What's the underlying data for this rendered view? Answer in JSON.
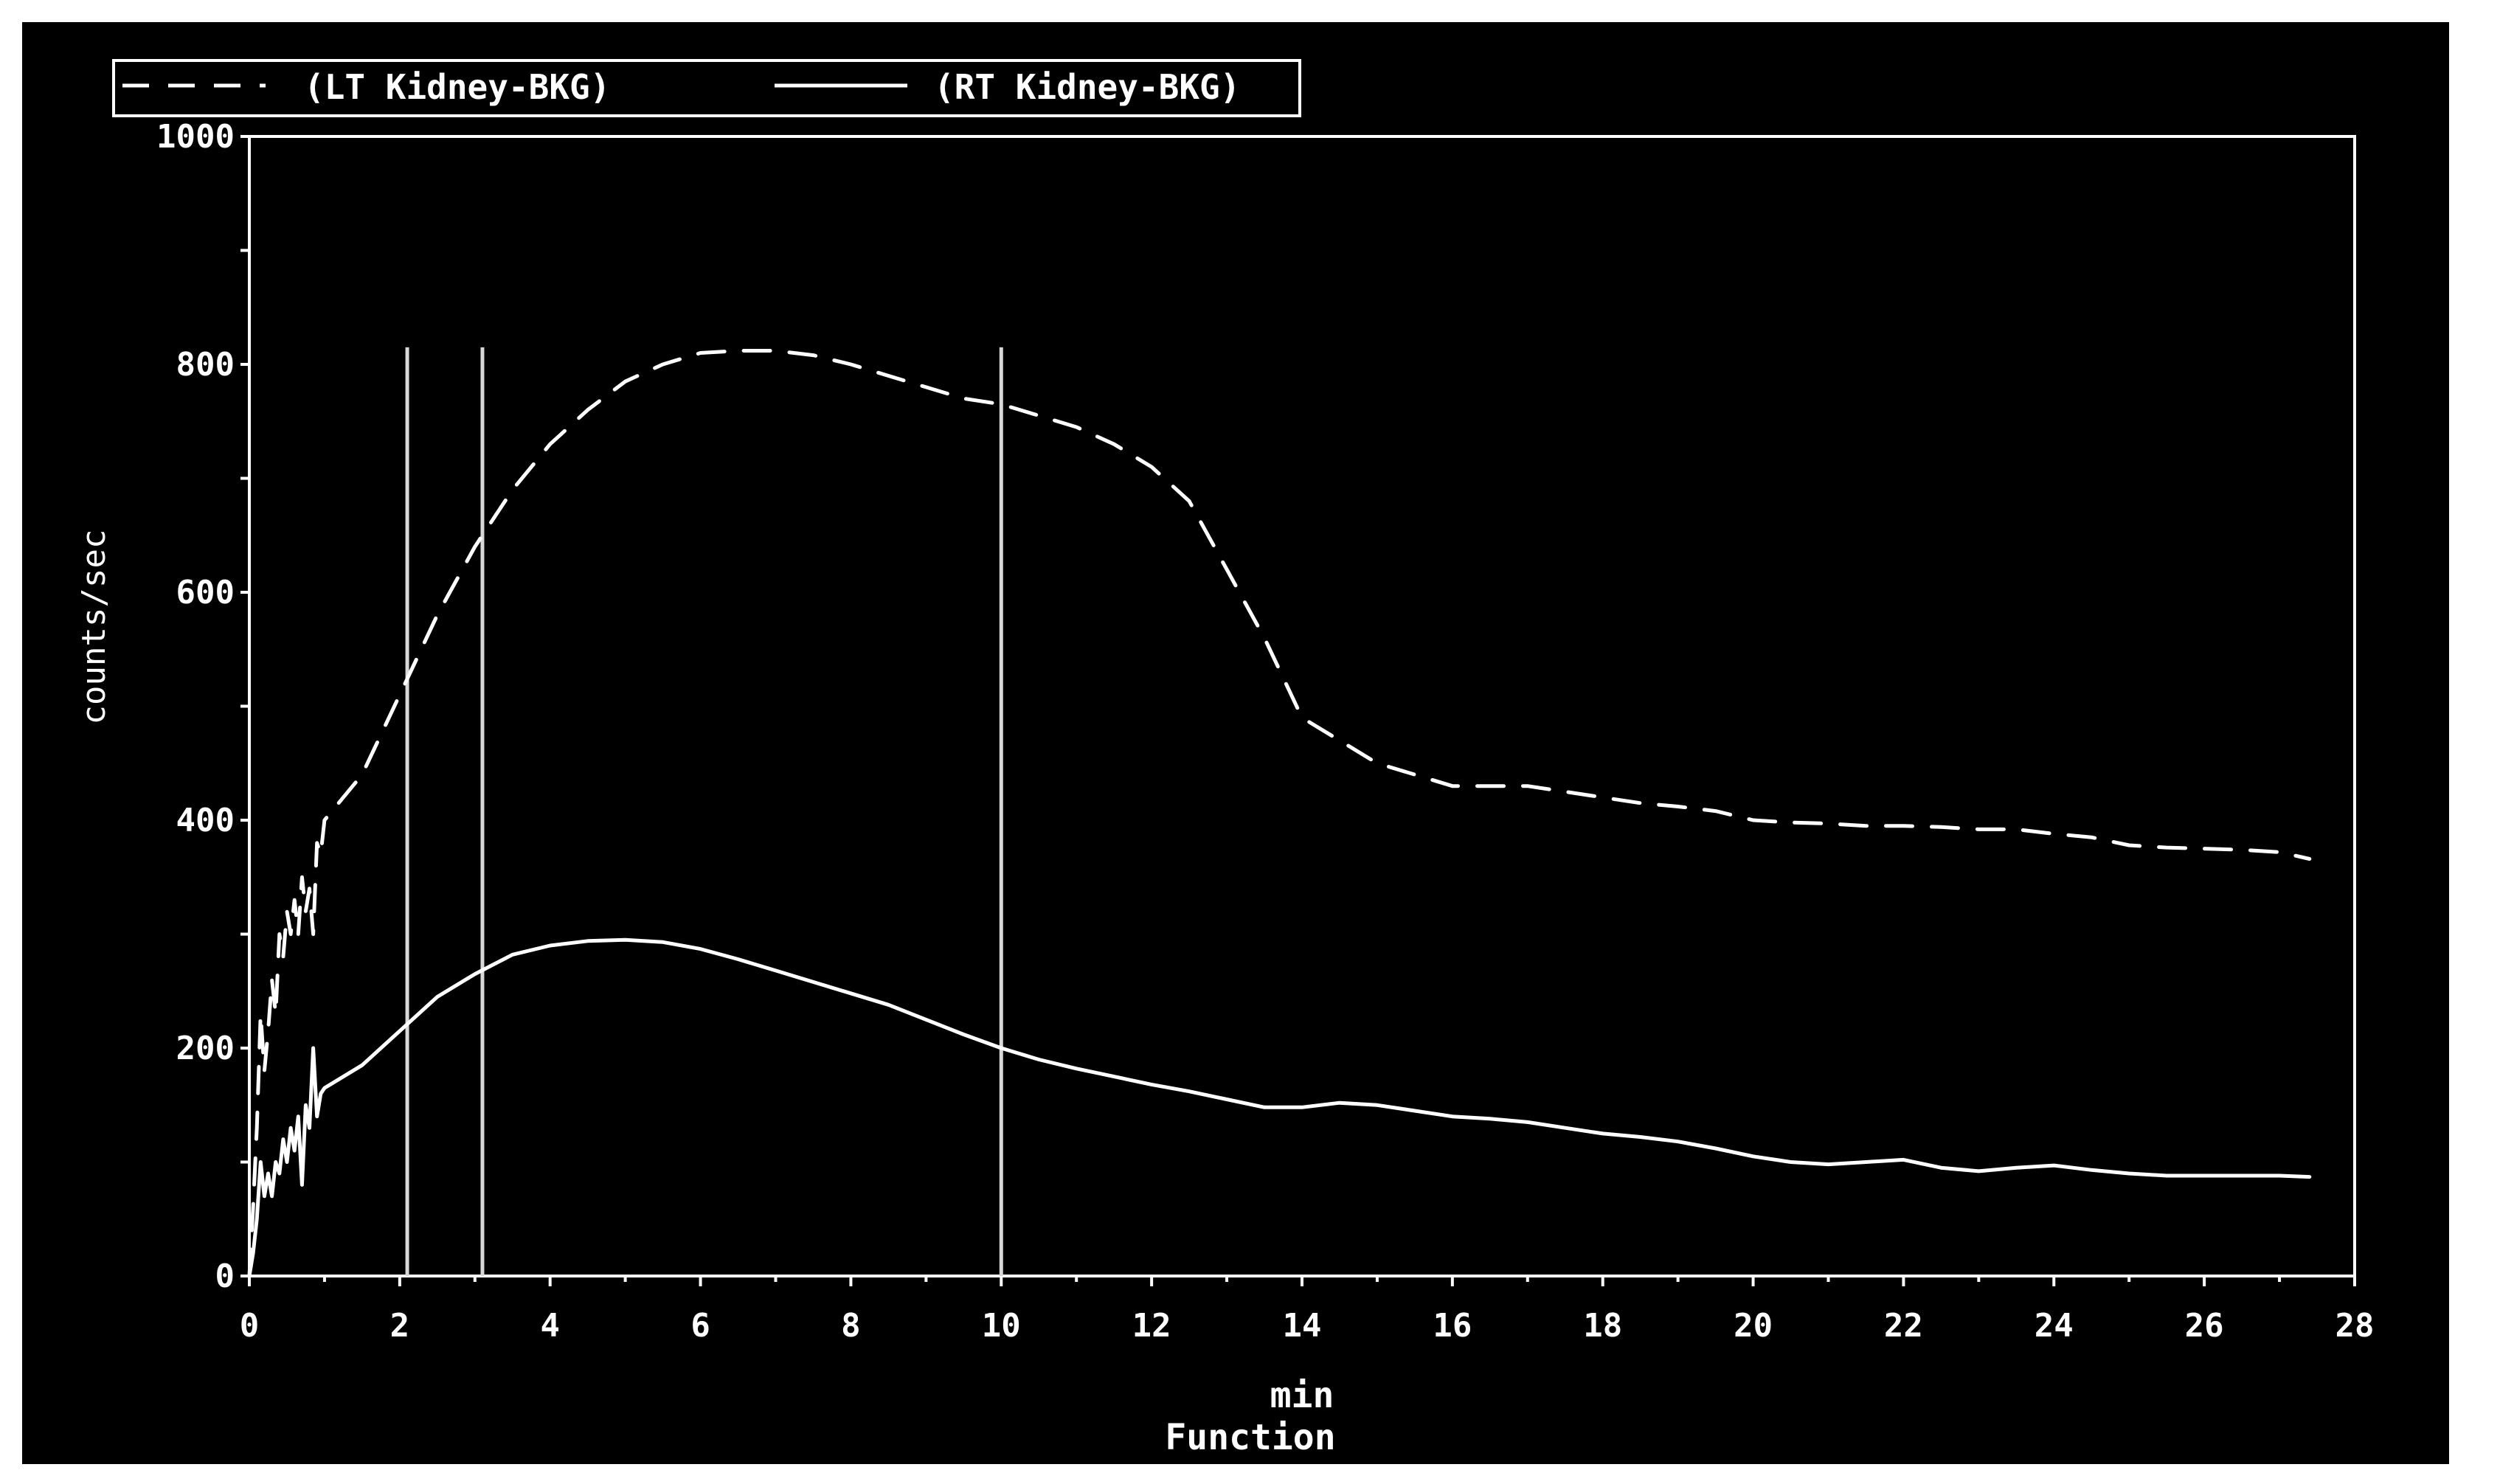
{
  "chart_data": {
    "type": "line",
    "title": "",
    "xlabel": "min",
    "caption": "Function",
    "ylabel": "counts/sec",
    "xlim": [
      0,
      28
    ],
    "ylim": [
      0,
      1000
    ],
    "x_ticks": [
      "0",
      "2",
      "4",
      "6",
      "8",
      "10",
      "12",
      "14",
      "16",
      "18",
      "20",
      "22",
      "24",
      "26",
      "28"
    ],
    "y_ticks": [
      "0",
      "200",
      "400",
      "600",
      "800",
      "1000"
    ],
    "grid": false,
    "legend_position": "top-left",
    "markers_x": [
      2.1,
      3.1,
      10.0
    ],
    "series": [
      {
        "name": "(LT Kidney-BKG)",
        "style": "dashed",
        "color": "#ffffff",
        "x": [
          0,
          0.05,
          0.1,
          0.15,
          0.2,
          0.25,
          0.3,
          0.35,
          0.4,
          0.45,
          0.5,
          0.55,
          0.6,
          0.65,
          0.7,
          0.75,
          0.8,
          0.85,
          0.9,
          0.95,
          1.0,
          1.5,
          2.0,
          2.5,
          3.0,
          3.5,
          4.0,
          4.5,
          5.0,
          5.5,
          6.0,
          6.5,
          7.0,
          7.5,
          8.0,
          8.5,
          9.0,
          9.5,
          10.0,
          10.5,
          11.0,
          11.5,
          12.0,
          12.5,
          13.0,
          13.5,
          14.0,
          14.5,
          15.0,
          15.5,
          16.0,
          16.5,
          17.0,
          17.5,
          18.0,
          18.5,
          19.0,
          19.5,
          20.0,
          20.5,
          21.0,
          21.5,
          22.0,
          22.5,
          23.0,
          23.5,
          24.0,
          24.5,
          25.0,
          25.5,
          26.0,
          26.5,
          27.0,
          27.4
        ],
        "y": [
          0,
          60,
          130,
          230,
          180,
          215,
          260,
          230,
          300,
          280,
          320,
          300,
          330,
          300,
          350,
          320,
          340,
          300,
          380,
          370,
          400,
          440,
          510,
          580,
          640,
          690,
          730,
          760,
          785,
          800,
          810,
          812,
          812,
          808,
          800,
          790,
          780,
          770,
          765,
          755,
          745,
          730,
          710,
          680,
          620,
          560,
          490,
          470,
          450,
          440,
          430,
          430,
          430,
          425,
          420,
          415,
          412,
          408,
          400,
          398,
          397,
          395,
          395,
          394,
          392,
          392,
          388,
          385,
          378,
          376,
          375,
          374,
          372,
          366
        ]
      },
      {
        "name": "(RT Kidney-BKG)",
        "style": "solid",
        "color": "#ffffff",
        "x": [
          0,
          0.05,
          0.1,
          0.15,
          0.2,
          0.25,
          0.3,
          0.35,
          0.4,
          0.45,
          0.5,
          0.55,
          0.6,
          0.65,
          0.7,
          0.75,
          0.8,
          0.85,
          0.9,
          0.95,
          1.0,
          1.5,
          2.0,
          2.5,
          3.0,
          3.5,
          4.0,
          4.5,
          5.0,
          5.5,
          6.0,
          6.5,
          7.0,
          7.5,
          8.0,
          8.5,
          9.0,
          9.5,
          10.0,
          10.5,
          11.0,
          11.5,
          12.0,
          12.5,
          13.0,
          13.5,
          14.0,
          14.5,
          15.0,
          15.5,
          16.0,
          16.5,
          17.0,
          17.5,
          18.0,
          18.5,
          19.0,
          19.5,
          20.0,
          20.5,
          21.0,
          21.5,
          22.0,
          22.5,
          23.0,
          23.5,
          24.0,
          24.5,
          25.0,
          25.5,
          26.0,
          26.5,
          27.0,
          27.4
        ],
        "y": [
          0,
          20,
          50,
          100,
          70,
          90,
          70,
          100,
          90,
          120,
          100,
          130,
          110,
          140,
          80,
          150,
          130,
          200,
          140,
          160,
          165,
          185,
          215,
          245,
          265,
          282,
          290,
          294,
          295,
          293,
          287,
          278,
          268,
          258,
          248,
          238,
          225,
          212,
          200,
          190,
          182,
          175,
          168,
          162,
          155,
          148,
          148,
          152,
          150,
          145,
          140,
          138,
          135,
          130,
          125,
          122,
          118,
          112,
          105,
          100,
          98,
          100,
          102,
          95,
          92,
          95,
          97,
          93,
          90,
          88,
          88,
          88,
          88,
          87
        ]
      }
    ]
  }
}
